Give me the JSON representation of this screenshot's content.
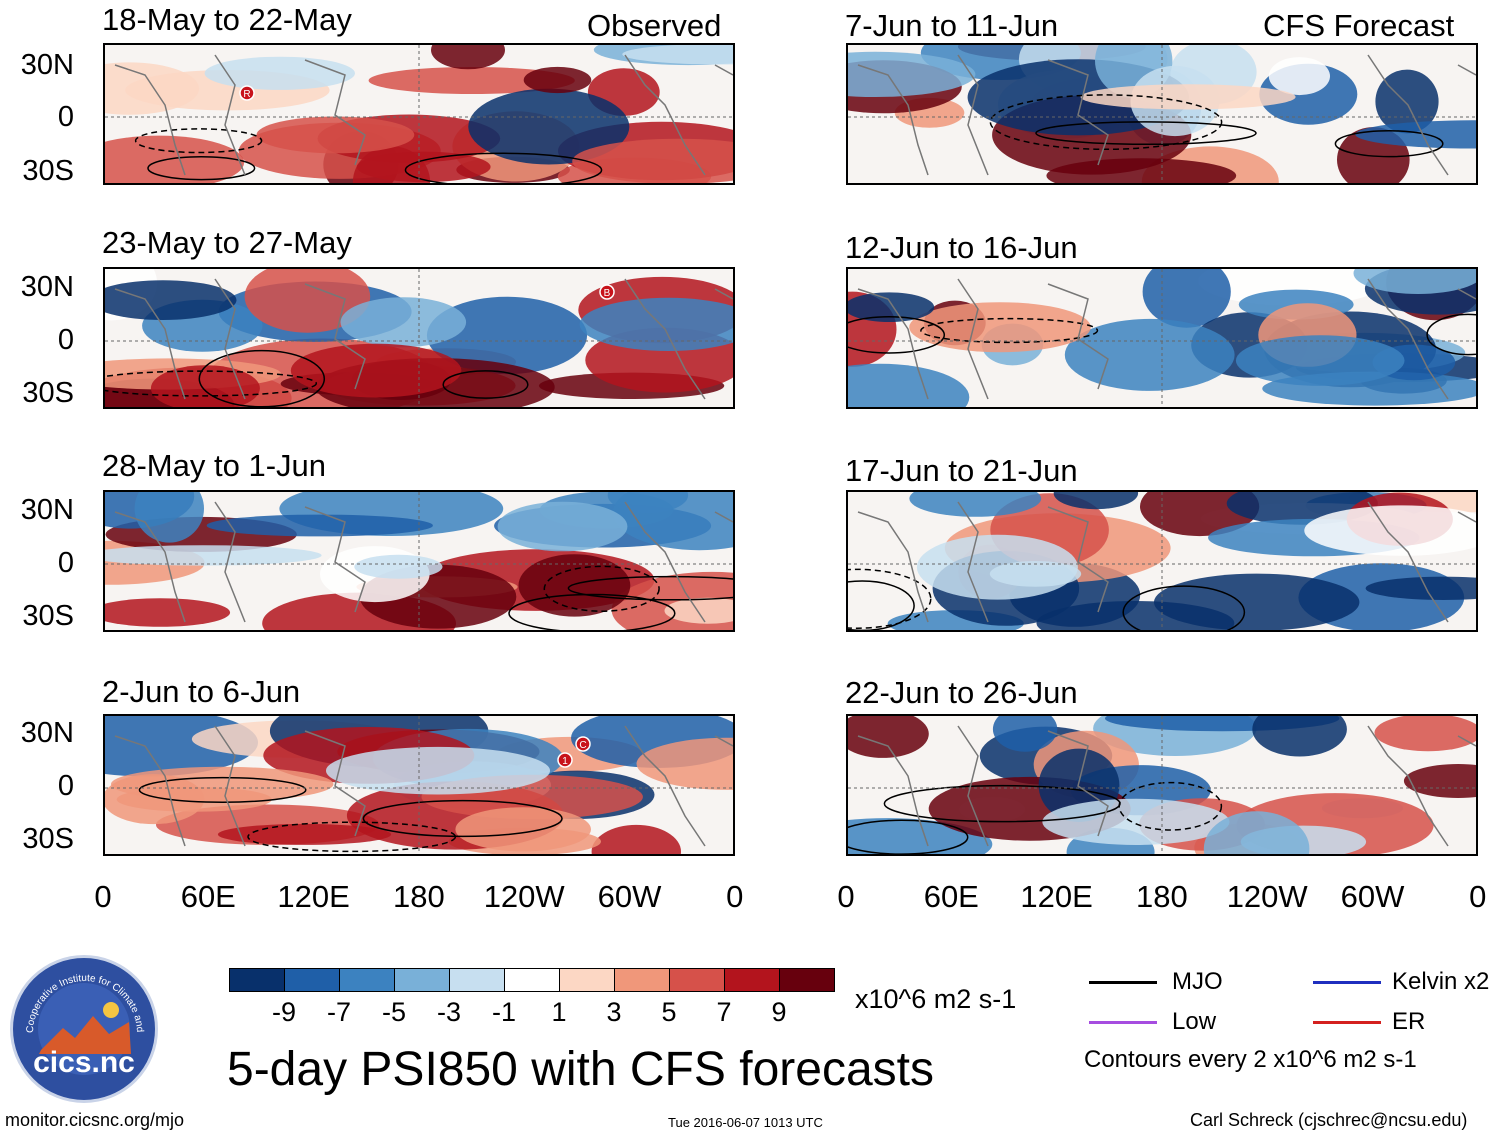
{
  "header": {
    "observed_label": "Observed",
    "forecast_label": "CFS Forecast"
  },
  "chart_data": {
    "type": "heatmap",
    "title": "5-day PSI850 with CFS forecasts",
    "variable": "PSI850 anomaly",
    "units": "x10^6 m2 s-1",
    "x_tick_labels": [
      "0",
      "60E",
      "120E",
      "180",
      "120W",
      "60W",
      "0"
    ],
    "y_tick_labels": [
      "30N",
      "0",
      "30S"
    ],
    "observed_panels": [
      {
        "title": "18-May to 22-May",
        "markers": [
          "R"
        ]
      },
      {
        "title": "23-May to 27-May",
        "markers": [
          "B"
        ]
      },
      {
        "title": "28-May to 1-Jun",
        "markers": []
      },
      {
        "title": "2-Jun to 6-Jun",
        "markers": [
          "1",
          "C"
        ]
      }
    ],
    "forecast_panels": [
      {
        "title": "7-Jun to 11-Jun"
      },
      {
        "title": "12-Jun to 16-Jun"
      },
      {
        "title": "17-Jun to 21-Jun"
      },
      {
        "title": "22-Jun to 26-Jun"
      }
    ],
    "colorbar": {
      "levels": [
        "-9",
        "-7",
        "-5",
        "-3",
        "-1",
        "1",
        "3",
        "5",
        "7",
        "9"
      ],
      "colors": [
        "#08306b",
        "#1f5fa8",
        "#3c82c0",
        "#79b0d8",
        "#c7dff0",
        "#ffffff",
        "#fcd7c4",
        "#f0977a",
        "#d6514a",
        "#b3141d",
        "#67000d"
      ]
    },
    "contour_legend": [
      {
        "label": "MJO",
        "color": "#000000"
      },
      {
        "label": "Kelvin x2",
        "color": "#1f2fbf"
      },
      {
        "label": "Low",
        "color": "#a64de0"
      },
      {
        "label": "ER",
        "color": "#d4201f"
      }
    ],
    "contour_note": "Contours every 2 x10^6 m2 s-1"
  },
  "footer": {
    "logo_text": "cics.nc",
    "logo_ring_text": "Cooperative Institute for Climate and Satellites",
    "website": "monitor.cicsnc.org/mjo",
    "timestamp": "Tue 2016-06-07 1013 UTC",
    "author": "Carl Schreck (cjschrec@ncsu.edu)"
  }
}
